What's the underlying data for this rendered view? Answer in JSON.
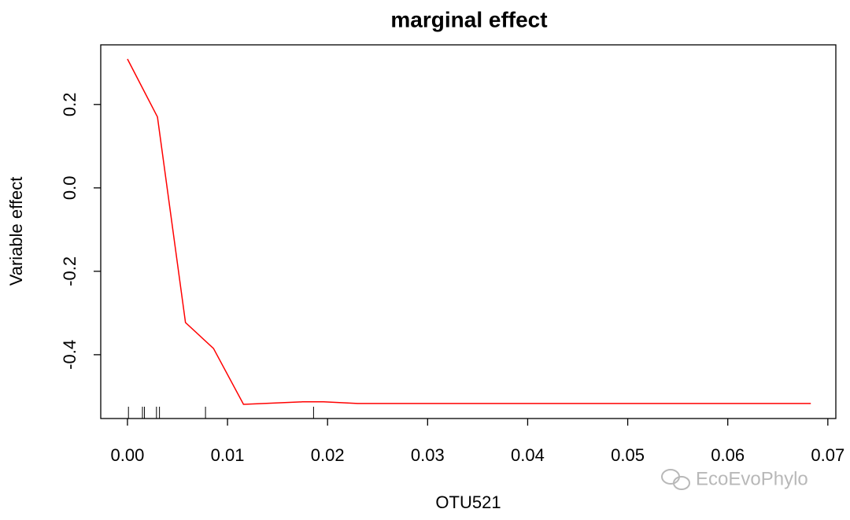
{
  "chart_data": {
    "type": "line",
    "title": "marginal effect",
    "xlabel": "OTU521",
    "ylabel": "Variable effect",
    "x": [
      0,
      0.003,
      0.0058,
      0.0086,
      0.0116,
      0.0175,
      0.0196,
      0.023,
      0.0683
    ],
    "series": [
      {
        "name": "marginal effect",
        "color": "#ff0000",
        "values": [
          0.309,
          0.17,
          -0.323,
          -0.385,
          -0.519,
          -0.513,
          -0.513,
          -0.517,
          -0.517
        ]
      }
    ],
    "rug": [
      0.0001,
      0.0015,
      0.0017,
      0.0029,
      0.0032,
      0.0078,
      0.0186
    ],
    "xlim": [
      -0.00267,
      0.0708
    ],
    "ylim": [
      -0.553,
      0.343
    ],
    "xticks": [
      {
        "value": 0,
        "label": "0.00"
      },
      0.01,
      0.02,
      0.03,
      0.04,
      0.05,
      0.06,
      0.07
    ],
    "yticks": [
      -0.4,
      -0.2,
      {
        "value": 0,
        "label": "0.0"
      },
      0.2
    ],
    "watermark": "EcoEvoPhylo"
  }
}
